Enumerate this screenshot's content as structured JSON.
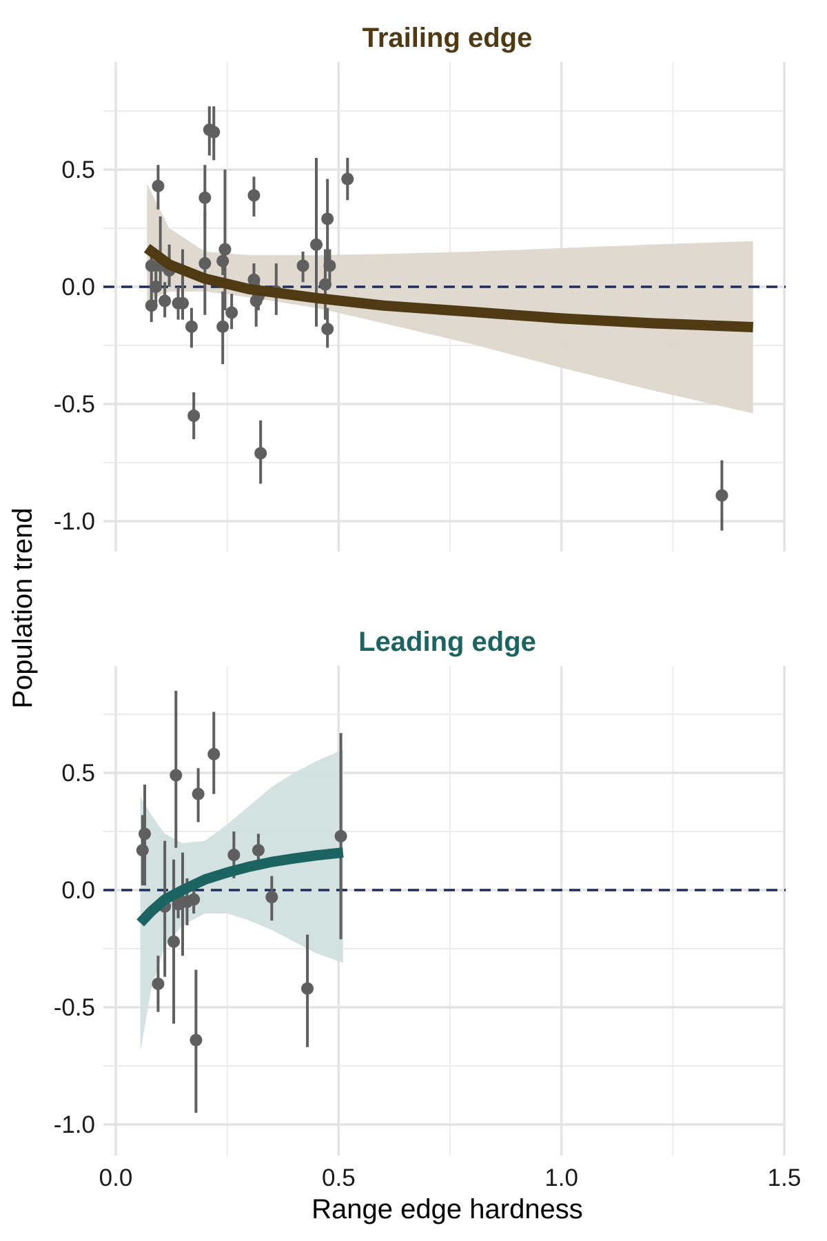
{
  "chart_data": {
    "type": "scatter",
    "xlabel": "Range edge hardness",
    "ylabel": "Population trend",
    "xlim": [
      0,
      1.5
    ],
    "ylim": [
      -1.1,
      0.85
    ],
    "x_ticks": [
      "0.0",
      "0.5",
      "1.0",
      "1.5"
    ],
    "y_ticks": [
      "0.5",
      "0.0",
      "-0.5",
      "-1.0"
    ],
    "reference_line": {
      "y": 0,
      "style": "dashed",
      "color": "#1f2d5c"
    },
    "grid": true,
    "panels": [
      {
        "title": "Trailing edge",
        "title_color": "#4f3a14",
        "line_color": "#4f3a14",
        "band_color": "#ddd7cd",
        "fit": {
          "x": [
            0.07,
            0.12,
            0.2,
            0.3,
            0.45,
            0.6,
            0.8,
            1.0,
            1.2,
            1.43
          ],
          "y": [
            0.165,
            0.095,
            0.035,
            -0.01,
            -0.048,
            -0.08,
            -0.107,
            -0.135,
            -0.155,
            -0.172
          ],
          "lower": [
            -0.06,
            -0.02,
            -0.02,
            -0.045,
            -0.09,
            -0.155,
            -0.245,
            -0.345,
            -0.44,
            -0.54
          ],
          "upper": [
            0.44,
            0.25,
            0.15,
            0.135,
            0.135,
            0.14,
            0.15,
            0.165,
            0.18,
            0.195
          ]
        },
        "points": [
          {
            "x": 0.08,
            "y": 0.09,
            "lo": 0.0,
            "hi": 0.17
          },
          {
            "x": 0.08,
            "y": -0.08,
            "lo": -0.15,
            "hi": 0.0
          },
          {
            "x": 0.09,
            "y": 0.0,
            "lo": -0.08,
            "hi": 0.09
          },
          {
            "x": 0.095,
            "y": 0.43,
            "lo": 0.33,
            "hi": 0.52
          },
          {
            "x": 0.1,
            "y": 0.09,
            "lo": 0.0,
            "hi": 0.3
          },
          {
            "x": 0.11,
            "y": -0.06,
            "lo": -0.13,
            "hi": 0.02
          },
          {
            "x": 0.12,
            "y": 0.07,
            "lo": 0.0,
            "hi": 0.18
          },
          {
            "x": 0.14,
            "y": -0.07,
            "lo": -0.14,
            "hi": 0.0
          },
          {
            "x": 0.15,
            "y": -0.07,
            "lo": -0.14,
            "hi": 0.16
          },
          {
            "x": 0.17,
            "y": -0.17,
            "lo": -0.26,
            "hi": -0.09
          },
          {
            "x": 0.175,
            "y": -0.55,
            "lo": -0.65,
            "hi": -0.45
          },
          {
            "x": 0.2,
            "y": 0.38,
            "lo": 0.25,
            "hi": 0.52
          },
          {
            "x": 0.2,
            "y": 0.1,
            "lo": -0.12,
            "hi": 0.32
          },
          {
            "x": 0.21,
            "y": 0.67,
            "lo": 0.56,
            "hi": 0.77
          },
          {
            "x": 0.22,
            "y": 0.66,
            "lo": 0.54,
            "hi": 0.77
          },
          {
            "x": 0.24,
            "y": 0.11,
            "lo": 0.05,
            "hi": 0.17
          },
          {
            "x": 0.245,
            "y": 0.16,
            "lo": -0.1,
            "hi": 0.5
          },
          {
            "x": 0.24,
            "y": -0.17,
            "lo": -0.33,
            "hi": -0.02
          },
          {
            "x": 0.26,
            "y": -0.11,
            "lo": -0.18,
            "hi": -0.03
          },
          {
            "x": 0.31,
            "y": 0.39,
            "lo": 0.3,
            "hi": 0.47
          },
          {
            "x": 0.31,
            "y": 0.03,
            "lo": -0.04,
            "hi": 0.1
          },
          {
            "x": 0.315,
            "y": -0.06,
            "lo": -0.17,
            "hi": 0.02
          },
          {
            "x": 0.32,
            "y": -0.04,
            "lo": -0.1,
            "hi": 0.03
          },
          {
            "x": 0.325,
            "y": -0.71,
            "lo": -0.84,
            "hi": -0.57
          },
          {
            "x": 0.36,
            "y": -0.02,
            "lo": -0.12,
            "hi": 0.1
          },
          {
            "x": 0.42,
            "y": 0.09,
            "lo": 0.02,
            "hi": 0.15
          },
          {
            "x": 0.45,
            "y": 0.18,
            "lo": -0.17,
            "hi": 0.55
          },
          {
            "x": 0.47,
            "y": 0.01,
            "lo": -0.14,
            "hi": 0.16
          },
          {
            "x": 0.475,
            "y": 0.29,
            "lo": 0.1,
            "hi": 0.46
          },
          {
            "x": 0.475,
            "y": -0.18,
            "lo": -0.26,
            "hi": -0.09
          },
          {
            "x": 0.48,
            "y": 0.09,
            "lo": 0.01,
            "hi": 0.16
          },
          {
            "x": 0.52,
            "y": 0.46,
            "lo": 0.37,
            "hi": 0.55
          },
          {
            "x": 1.36,
            "y": -0.89,
            "lo": -1.04,
            "hi": -0.74
          }
        ]
      },
      {
        "title": "Leading edge",
        "title_color": "#1b6462",
        "line_color": "#1b6462",
        "band_color": "#d1e0df",
        "fit": {
          "x": [
            0.055,
            0.08,
            0.11,
            0.15,
            0.2,
            0.25,
            0.3,
            0.35,
            0.4,
            0.45,
            0.51
          ],
          "y": [
            -0.14,
            -0.09,
            -0.04,
            0.0,
            0.045,
            0.075,
            0.1,
            0.12,
            0.135,
            0.148,
            0.16
          ],
          "lower": [
            -0.69,
            -0.42,
            -0.24,
            -0.15,
            -0.1,
            -0.1,
            -0.13,
            -0.17,
            -0.22,
            -0.27,
            -0.31
          ],
          "upper": [
            0.4,
            0.32,
            0.24,
            0.2,
            0.21,
            0.28,
            0.36,
            0.44,
            0.5,
            0.55,
            0.6
          ]
        },
        "points": [
          {
            "x": 0.06,
            "y": 0.17,
            "lo": 0.02,
            "hi": 0.32
          },
          {
            "x": 0.065,
            "y": 0.24,
            "lo": 0.02,
            "hi": 0.45
          },
          {
            "x": 0.095,
            "y": -0.4,
            "lo": -0.52,
            "hi": -0.28
          },
          {
            "x": 0.11,
            "y": -0.07,
            "lo": -0.37,
            "hi": 0.21
          },
          {
            "x": 0.13,
            "y": -0.22,
            "lo": -0.57,
            "hi": 0.13
          },
          {
            "x": 0.135,
            "y": 0.49,
            "lo": 0.18,
            "hi": 0.85
          },
          {
            "x": 0.14,
            "y": -0.06,
            "lo": -0.12,
            "hi": 0.0
          },
          {
            "x": 0.15,
            "y": -0.05,
            "lo": -0.28,
            "hi": 0.16
          },
          {
            "x": 0.16,
            "y": -0.05,
            "lo": -0.15,
            "hi": 0.05
          },
          {
            "x": 0.175,
            "y": -0.04,
            "lo": -0.1,
            "hi": 0.02
          },
          {
            "x": 0.18,
            "y": -0.64,
            "lo": -0.95,
            "hi": -0.34
          },
          {
            "x": 0.185,
            "y": 0.41,
            "lo": 0.29,
            "hi": 0.52
          },
          {
            "x": 0.22,
            "y": 0.58,
            "lo": 0.41,
            "hi": 0.76
          },
          {
            "x": 0.265,
            "y": 0.15,
            "lo": 0.05,
            "hi": 0.25
          },
          {
            "x": 0.32,
            "y": 0.17,
            "lo": 0.11,
            "hi": 0.24
          },
          {
            "x": 0.35,
            "y": -0.03,
            "lo": -0.13,
            "hi": 0.06
          },
          {
            "x": 0.43,
            "y": -0.42,
            "lo": -0.67,
            "hi": -0.19
          },
          {
            "x": 0.505,
            "y": 0.23,
            "lo": -0.21,
            "hi": 0.67
          }
        ]
      }
    ]
  }
}
